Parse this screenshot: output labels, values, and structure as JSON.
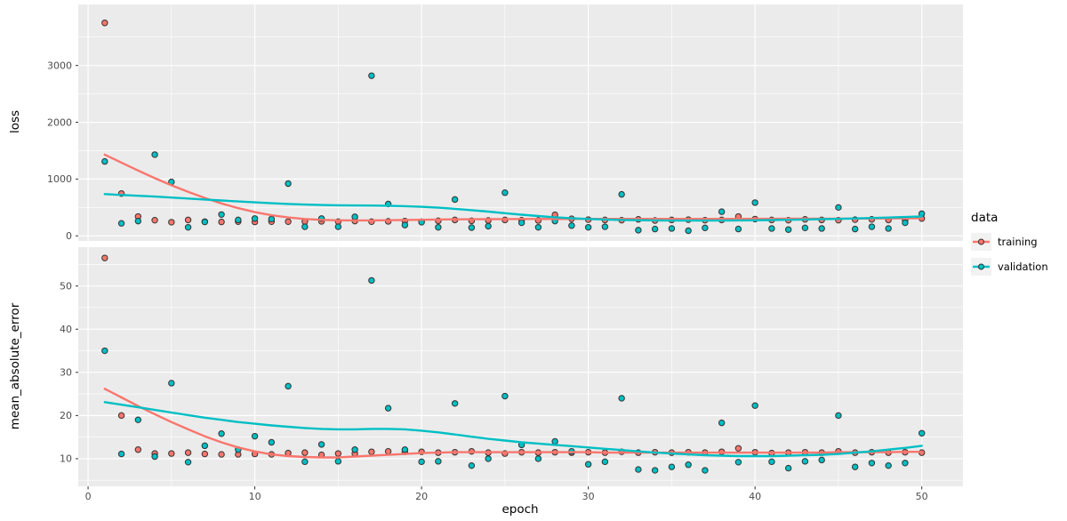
{
  "colors": {
    "training": "#F8766D",
    "validation": "#00BFC4",
    "panel_bg": "#EBEBEB",
    "grid": "#FFFFFF",
    "tick_text": "#4D4D4D",
    "tick_mark": "#333333",
    "axis_title": "#000000",
    "legend_key_bg": "#F2F2F2",
    "point_stroke": "#333333"
  },
  "x_axis": {
    "title": "epoch",
    "major_ticks": [
      0,
      10,
      20,
      30,
      40,
      50
    ],
    "minor_ticks": [
      5,
      15,
      25,
      35,
      45
    ]
  },
  "legend": {
    "title": "data",
    "entries": [
      {
        "label": "training",
        "color_key": "training"
      },
      {
        "label": "validation",
        "color_key": "validation"
      }
    ]
  },
  "chart_data": [
    {
      "id": "loss",
      "type": "scatter+smooth",
      "ylabel": "loss",
      "xlabel": "epoch",
      "ylim": [
        -90,
        4075
      ],
      "y_major_ticks": [
        0,
        1000,
        2000,
        3000
      ],
      "y_minor_ticks": [
        500,
        1500,
        2500,
        3500
      ],
      "x": [
        1,
        2,
        3,
        4,
        5,
        6,
        7,
        8,
        9,
        10,
        11,
        12,
        13,
        14,
        15,
        16,
        17,
        18,
        19,
        20,
        21,
        22,
        23,
        24,
        25,
        26,
        27,
        28,
        29,
        30,
        31,
        32,
        33,
        34,
        35,
        36,
        37,
        38,
        39,
        40,
        41,
        42,
        43,
        44,
        45,
        46,
        47,
        48,
        49,
        50
      ],
      "series": [
        {
          "name": "training",
          "points": [
            3750,
            745,
            340,
            275,
            240,
            280,
            250,
            245,
            250,
            245,
            250,
            250,
            250,
            255,
            250,
            260,
            250,
            255,
            260,
            250,
            265,
            280,
            265,
            270,
            280,
            275,
            270,
            370,
            300,
            285,
            280,
            275,
            290,
            270,
            280,
            285,
            275,
            280,
            340,
            295,
            280,
            275,
            290,
            280,
            275,
            285,
            290,
            280,
            275,
            305
          ],
          "smooth": [
            1430,
            1290,
            1150,
            1015,
            890,
            775,
            668,
            570,
            487,
            418,
            363,
            323,
            297,
            281,
            273,
            271,
            272,
            275,
            279,
            283,
            287,
            290,
            292,
            294,
            295,
            296,
            296,
            297,
            297,
            298,
            298,
            298,
            298,
            298,
            298,
            298,
            298,
            299,
            299,
            300,
            300,
            301,
            301,
            302,
            303,
            304,
            305,
            306,
            308,
            310
          ]
        },
        {
          "name": "validation",
          "points": [
            1310,
            220,
            260,
            1430,
            950,
            150,
            245,
            375,
            280,
            305,
            295,
            920,
            160,
            305,
            160,
            335,
            2820,
            560,
            190,
            240,
            150,
            640,
            145,
            170,
            760,
            230,
            150,
            260,
            180,
            150,
            160,
            730,
            100,
            120,
            130,
            90,
            140,
            425,
            120,
            585,
            130,
            110,
            140,
            130,
            500,
            120,
            160,
            130,
            230,
            390
          ],
          "smooth": [
            735,
            720,
            706,
            691,
            674,
            657,
            640,
            622,
            605,
            589,
            574,
            561,
            551,
            543,
            538,
            535,
            533,
            530,
            523,
            512,
            496,
            476,
            452,
            426,
            399,
            372,
            348,
            327,
            310,
            297,
            287,
            280,
            275,
            271,
            269,
            268,
            268,
            269,
            271,
            274,
            278,
            282,
            287,
            293,
            299,
            306,
            314,
            322,
            331,
            341
          ]
        }
      ]
    },
    {
      "id": "mean_absolute_error",
      "type": "scatter+smooth",
      "ylabel": "mean_absolute_error",
      "xlabel": "epoch",
      "ylim": [
        3.6,
        59
      ],
      "y_major_ticks": [
        10,
        20,
        30,
        40,
        50
      ],
      "y_minor_ticks": [
        5,
        15,
        25,
        35,
        45,
        55
      ],
      "x": [
        1,
        2,
        3,
        4,
        5,
        6,
        7,
        8,
        9,
        10,
        11,
        12,
        13,
        14,
        15,
        16,
        17,
        18,
        19,
        20,
        21,
        22,
        23,
        24,
        25,
        26,
        27,
        28,
        29,
        30,
        31,
        32,
        33,
        34,
        35,
        36,
        37,
        38,
        39,
        40,
        41,
        42,
        43,
        44,
        45,
        46,
        47,
        48,
        49,
        50
      ],
      "series": [
        {
          "name": "training",
          "points": [
            56.5,
            20,
            12.1,
            11.2,
            11.2,
            11.4,
            11.1,
            11,
            11,
            11.1,
            11,
            11.3,
            11.4,
            10.9,
            11.2,
            11.2,
            11.6,
            11.7,
            11.6,
            11.6,
            11.4,
            11.5,
            11.7,
            11.4,
            11.2,
            11.5,
            11.4,
            11.5,
            11.4,
            11.5,
            11.4,
            11.6,
            11.4,
            11.5,
            11.4,
            11.5,
            11.4,
            11.6,
            12.4,
            11.5,
            11.3,
            11.4,
            11.5,
            11.4,
            11.7,
            11.4,
            11.5,
            11.4,
            11.5,
            11.4
          ],
          "smooth": [
            26.2,
            24.2,
            22.2,
            20.3,
            18.5,
            16.8,
            15.2,
            13.8,
            12.6,
            11.7,
            11.0,
            10.6,
            10.4,
            10.3,
            10.3,
            10.5,
            10.7,
            10.9,
            11.1,
            11.3,
            11.4,
            11.5,
            11.5,
            11.5,
            11.5,
            11.5,
            11.5,
            11.5,
            11.5,
            11.5,
            11.4,
            11.4,
            11.4,
            11.4,
            11.4,
            11.4,
            11.4,
            11.4,
            11.4,
            11.4,
            11.4,
            11.4,
            11.4,
            11.4,
            11.5,
            11.5,
            11.5,
            11.5,
            11.6,
            11.6
          ]
        },
        {
          "name": "validation",
          "points": [
            35,
            11.1,
            19,
            10.5,
            27.5,
            9.2,
            13,
            15.8,
            12.1,
            15.2,
            13.8,
            26.8,
            9.3,
            13.3,
            9.4,
            12.1,
            51.3,
            21.7,
            12.1,
            9.3,
            9.4,
            22.8,
            8.4,
            10,
            24.5,
            13.2,
            10,
            14,
            11.7,
            8.7,
            9.3,
            24,
            7.5,
            7.3,
            8.1,
            8.6,
            7.3,
            18.3,
            9.2,
            22.3,
            9.3,
            7.8,
            9.4,
            9.7,
            20,
            8.1,
            9,
            8.4,
            9,
            15.9
          ],
          "smooth": [
            23.1,
            22.5,
            21.9,
            21.3,
            20.7,
            20.1,
            19.5,
            19.0,
            18.5,
            18.1,
            17.7,
            17.4,
            17.1,
            16.9,
            16.8,
            16.8,
            16.9,
            16.9,
            16.8,
            16.5,
            16.1,
            15.6,
            15.1,
            14.6,
            14.2,
            13.8,
            13.5,
            13.2,
            12.9,
            12.6,
            12.3,
            12.0,
            11.7,
            11.4,
            11.2,
            11.0,
            10.8,
            10.7,
            10.6,
            10.6,
            10.6,
            10.7,
            10.8,
            10.9,
            11.1,
            11.4,
            11.7,
            12.1,
            12.5,
            13.0
          ]
        }
      ]
    }
  ]
}
